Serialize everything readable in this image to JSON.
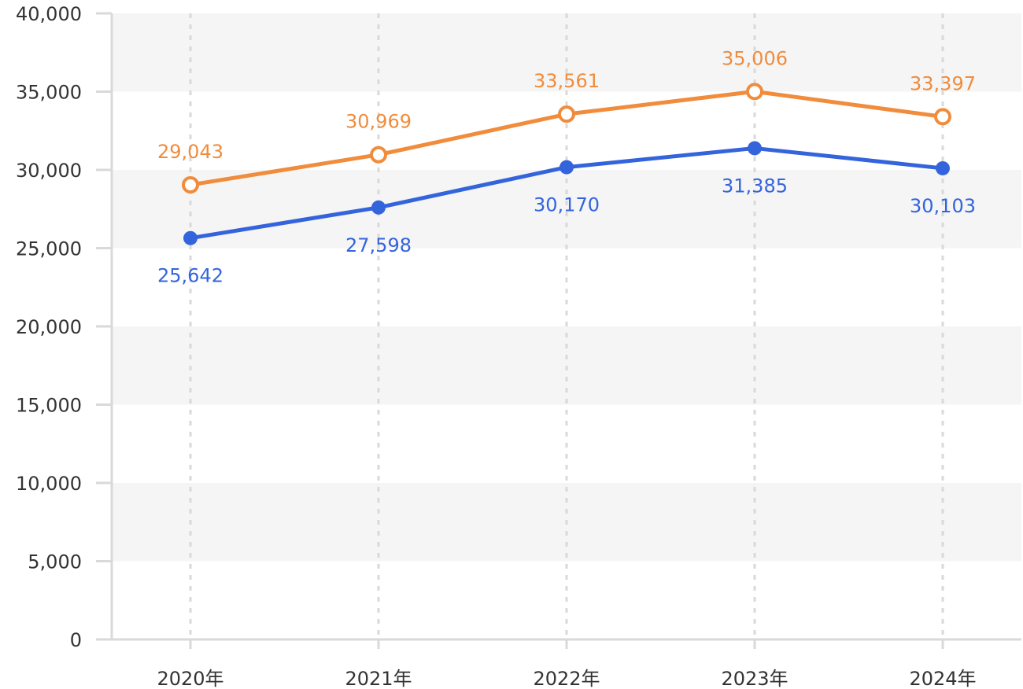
{
  "chart_data": {
    "type": "line",
    "categories": [
      "2020年",
      "2021年",
      "2022年",
      "2023年",
      "2024年"
    ],
    "series": [
      {
        "values": [
          29043,
          30969,
          33561,
          35006,
          33397
        ],
        "labels": [
          "29,043",
          "30,969",
          "33,561",
          "35,006",
          "33,397"
        ],
        "color": "#F08C3C",
        "marker": "hollow-circle",
        "label_position": "above"
      },
      {
        "values": [
          25642,
          27598,
          30170,
          31385,
          30103
        ],
        "labels": [
          "25,642",
          "27,598",
          "30,170",
          "31,385",
          "30,103"
        ],
        "color": "#3464DC",
        "marker": "filled-circle",
        "label_position": "below"
      }
    ],
    "ylim": [
      0,
      40000
    ],
    "yticks": [
      0,
      5000,
      10000,
      15000,
      20000,
      25000,
      30000,
      35000,
      40000
    ],
    "ytick_labels": [
      "0",
      "5,000",
      "10,000",
      "15,000",
      "20,000",
      "25,000",
      "30,000",
      "35,000",
      "40,000"
    ],
    "grid": "alternating horizontal bands; dashed vertical lines at categories",
    "band_color": "#F5F5F5",
    "axis_color": "#D9D9D9",
    "legend": "none"
  }
}
